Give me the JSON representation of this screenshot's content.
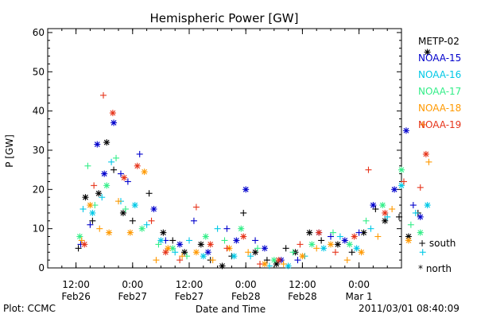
{
  "chart_data": {
    "type": "scatter",
    "title": "Hemispheric Power [GW]",
    "ylabel": "P [GW]",
    "xlabel": "Date and Time",
    "ylim": [
      0,
      61
    ],
    "yticks": [
      0,
      10,
      20,
      30,
      40,
      50,
      60
    ],
    "xlim": [
      "2011-02-26 06:00",
      "2011-03-01 09:00"
    ],
    "xticks": [
      {
        "time": "2011-02-26 12:00",
        "line1": "12:00",
        "line2": "Feb26"
      },
      {
        "time": "2011-02-27 00:00",
        "line1": "0:00",
        "line2": "Feb27"
      },
      {
        "time": "2011-02-27 12:00",
        "line1": "12:00",
        "line2": "Feb27"
      },
      {
        "time": "2011-02-28 00:00",
        "line1": "0:00",
        "line2": "Feb28"
      },
      {
        "time": "2011-02-28 12:00",
        "line1": "12:00",
        "line2": "Feb28"
      },
      {
        "time": "2011-03-01 00:00",
        "line1": "0:00",
        "line2": "Mar 1"
      }
    ],
    "marker_legend": {
      "south": "+ south",
      "north": "* north"
    },
    "series": [
      {
        "name": "METP-02",
        "color": "#000000",
        "points": [
          {
            "t": 6.5,
            "y": 5,
            "h": "S"
          },
          {
            "t": 8.0,
            "y": 18,
            "h": "N"
          },
          {
            "t": 9.5,
            "y": 12,
            "h": "S"
          },
          {
            "t": 10.8,
            "y": 19,
            "h": "N"
          },
          {
            "t": 12.5,
            "y": 32,
            "h": "N"
          },
          {
            "t": 14.0,
            "y": 25,
            "h": "S"
          },
          {
            "t": 16.0,
            "y": 14,
            "h": "N"
          },
          {
            "t": 18.0,
            "y": 12,
            "h": "S"
          },
          {
            "t": 21.5,
            "y": 19,
            "h": "S"
          },
          {
            "t": 24.5,
            "y": 9,
            "h": "N"
          },
          {
            "t": 26.5,
            "y": 7,
            "h": "S"
          },
          {
            "t": 29.0,
            "y": 4,
            "h": "N"
          },
          {
            "t": 32.5,
            "y": 6,
            "h": "N"
          },
          {
            "t": 34.5,
            "y": 2,
            "h": "S"
          },
          {
            "t": 37.0,
            "y": 0.5,
            "h": "N"
          },
          {
            "t": 39.0,
            "y": 3,
            "h": "S"
          },
          {
            "t": 41.5,
            "y": 14,
            "h": "S"
          },
          {
            "t": 44.0,
            "y": 4,
            "h": "N"
          },
          {
            "t": 46.5,
            "y": 2,
            "h": "S"
          },
          {
            "t": 48.5,
            "y": 1,
            "h": "N"
          },
          {
            "t": 50.5,
            "y": 5,
            "h": "S"
          },
          {
            "t": 52.5,
            "y": 4,
            "h": "N"
          },
          {
            "t": 55.5,
            "y": 9,
            "h": "N"
          },
          {
            "t": 58.0,
            "y": 7,
            "h": "S"
          },
          {
            "t": 61.5,
            "y": 6,
            "h": "N"
          },
          {
            "t": 64.5,
            "y": 4,
            "h": "S"
          },
          {
            "t": 67.0,
            "y": 9,
            "h": "N"
          },
          {
            "t": 69.5,
            "y": 15,
            "h": "S"
          },
          {
            "t": 71.5,
            "y": 12,
            "h": "N"
          },
          {
            "t": 74.5,
            "y": 13,
            "h": "S"
          },
          {
            "t": 76.5,
            "y": 8,
            "h": "N"
          },
          {
            "t": 78.5,
            "y": 14,
            "h": "S"
          },
          {
            "t": 80.5,
            "y": 55,
            "h": "N"
          }
        ]
      },
      {
        "name": "NOAA-15",
        "color": "#0000cc",
        "points": [
          {
            "t": 7.0,
            "y": 6,
            "h": "S"
          },
          {
            "t": 9.0,
            "y": 11,
            "h": "S"
          },
          {
            "t": 10.5,
            "y": 31.5,
            "h": "N"
          },
          {
            "t": 12.0,
            "y": 24,
            "h": "N"
          },
          {
            "t": 14.0,
            "y": 37,
            "h": "N"
          },
          {
            "t": 15.5,
            "y": 24,
            "h": "S"
          },
          {
            "t": 17.0,
            "y": 22,
            "h": "S"
          },
          {
            "t": 19.5,
            "y": 29,
            "h": "S"
          },
          {
            "t": 22.5,
            "y": 15,
            "h": "N"
          },
          {
            "t": 25.0,
            "y": 7,
            "h": "S"
          },
          {
            "t": 28.0,
            "y": 6,
            "h": "N"
          },
          {
            "t": 31.0,
            "y": 12,
            "h": "S"
          },
          {
            "t": 34.0,
            "y": 4,
            "h": "N"
          },
          {
            "t": 38.0,
            "y": 10,
            "h": "S"
          },
          {
            "t": 40.0,
            "y": 7,
            "h": "N"
          },
          {
            "t": 42.0,
            "y": 20,
            "h": "N"
          },
          {
            "t": 44.0,
            "y": 7,
            "h": "S"
          },
          {
            "t": 46.0,
            "y": 5,
            "h": "N"
          },
          {
            "t": 49.5,
            "y": 2,
            "h": "N"
          },
          {
            "t": 53.0,
            "y": 2,
            "h": "S"
          },
          {
            "t": 57.5,
            "y": 9,
            "h": "N"
          },
          {
            "t": 60.0,
            "y": 8,
            "h": "S"
          },
          {
            "t": 63.0,
            "y": 7,
            "h": "N"
          },
          {
            "t": 66.0,
            "y": 9,
            "h": "S"
          },
          {
            "t": 69.0,
            "y": 16,
            "h": "N"
          },
          {
            "t": 73.5,
            "y": 20,
            "h": "N"
          },
          {
            "t": 76.0,
            "y": 35,
            "h": "N"
          },
          {
            "t": 77.5,
            "y": 16,
            "h": "S"
          },
          {
            "t": 79.0,
            "y": 13,
            "h": "N"
          }
        ]
      },
      {
        "name": "NOAA-16",
        "color": "#00c8e6",
        "points": [
          {
            "t": 7.5,
            "y": 15,
            "h": "S"
          },
          {
            "t": 9.5,
            "y": 14,
            "h": "N"
          },
          {
            "t": 11.5,
            "y": 18,
            "h": "S"
          },
          {
            "t": 13.5,
            "y": 27,
            "h": "S"
          },
          {
            "t": 15.5,
            "y": 17,
            "h": "S"
          },
          {
            "t": 18.5,
            "y": 16,
            "h": "N"
          },
          {
            "t": 21.0,
            "y": 11,
            "h": "S"
          },
          {
            "t": 24.0,
            "y": 7,
            "h": "N"
          },
          {
            "t": 27.0,
            "y": 4,
            "h": "S"
          },
          {
            "t": 30.0,
            "y": 7,
            "h": "S"
          },
          {
            "t": 33.0,
            "y": 3,
            "h": "N"
          },
          {
            "t": 36.0,
            "y": 10,
            "h": "S"
          },
          {
            "t": 39.5,
            "y": 3,
            "h": "N"
          },
          {
            "t": 43.0,
            "y": 3,
            "h": "S"
          },
          {
            "t": 47.0,
            "y": 0.5,
            "h": "S"
          },
          {
            "t": 51.0,
            "y": 0.5,
            "h": "N"
          },
          {
            "t": 54.5,
            "y": 3,
            "h": "S"
          },
          {
            "t": 58.5,
            "y": 5,
            "h": "N"
          },
          {
            "t": 62.0,
            "y": 8,
            "h": "S"
          },
          {
            "t": 65.5,
            "y": 5,
            "h": "N"
          },
          {
            "t": 68.5,
            "y": 10,
            "h": "S"
          },
          {
            "t": 72.0,
            "y": 13,
            "h": "S"
          },
          {
            "t": 75.0,
            "y": 21,
            "h": "N"
          },
          {
            "t": 78.0,
            "y": 14,
            "h": "S"
          },
          {
            "t": 79.5,
            "y": 4,
            "h": "S"
          },
          {
            "t": 80.5,
            "y": 16,
            "h": "N"
          }
        ]
      },
      {
        "name": "NOAA-17",
        "color": "#33ee88",
        "points": [
          {
            "t": 6.8,
            "y": 8,
            "h": "N"
          },
          {
            "t": 8.5,
            "y": 26,
            "h": "S"
          },
          {
            "t": 10.0,
            "y": 16,
            "h": "S"
          },
          {
            "t": 12.5,
            "y": 21,
            "h": "N"
          },
          {
            "t": 14.5,
            "y": 28,
            "h": "S"
          },
          {
            "t": 16.5,
            "y": 15,
            "h": "S"
          },
          {
            "t": 20.0,
            "y": 10,
            "h": "N"
          },
          {
            "t": 23.5,
            "y": 6,
            "h": "S"
          },
          {
            "t": 26.5,
            "y": 5,
            "h": "N"
          },
          {
            "t": 29.5,
            "y": 3,
            "h": "S"
          },
          {
            "t": 33.5,
            "y": 8,
            "h": "N"
          },
          {
            "t": 37.5,
            "y": 7,
            "h": "S"
          },
          {
            "t": 41.0,
            "y": 10,
            "h": "N"
          },
          {
            "t": 44.5,
            "y": 5,
            "h": "S"
          },
          {
            "t": 48.0,
            "y": 2,
            "h": "N"
          },
          {
            "t": 52.0,
            "y": 4,
            "h": "S"
          },
          {
            "t": 56.0,
            "y": 6,
            "h": "N"
          },
          {
            "t": 60.5,
            "y": 9,
            "h": "S"
          },
          {
            "t": 64.0,
            "y": 6,
            "h": "N"
          },
          {
            "t": 67.5,
            "y": 12,
            "h": "S"
          },
          {
            "t": 71.0,
            "y": 16,
            "h": "N"
          },
          {
            "t": 75.0,
            "y": 25,
            "h": "N"
          },
          {
            "t": 77.0,
            "y": 11,
            "h": "S"
          },
          {
            "t": 79.0,
            "y": 9,
            "h": "N"
          }
        ]
      },
      {
        "name": "NOAA-18",
        "color": "#ff9900",
        "points": [
          {
            "t": 7.2,
            "y": 7,
            "h": "S"
          },
          {
            "t": 9.0,
            "y": 16,
            "h": "N"
          },
          {
            "t": 11.0,
            "y": 10,
            "h": "S"
          },
          {
            "t": 13.0,
            "y": 9,
            "h": "N"
          },
          {
            "t": 15.0,
            "y": 17,
            "h": "S"
          },
          {
            "t": 17.5,
            "y": 9,
            "h": "N"
          },
          {
            "t": 20.5,
            "y": 24.5,
            "h": "N"
          },
          {
            "t": 23.0,
            "y": 2,
            "h": "S"
          },
          {
            "t": 25.5,
            "y": 5,
            "h": "N"
          },
          {
            "t": 28.5,
            "y": 3,
            "h": "S"
          },
          {
            "t": 31.5,
            "y": 4,
            "h": "N"
          },
          {
            "t": 35.0,
            "y": 2,
            "h": "S"
          },
          {
            "t": 38.5,
            "y": 5,
            "h": "N"
          },
          {
            "t": 42.5,
            "y": 4,
            "h": "S"
          },
          {
            "t": 46.0,
            "y": 1,
            "h": "N"
          },
          {
            "t": 50.0,
            "y": 1,
            "h": "S"
          },
          {
            "t": 54.0,
            "y": 3,
            "h": "N"
          },
          {
            "t": 57.0,
            "y": 5,
            "h": "S"
          },
          {
            "t": 60.0,
            "y": 6,
            "h": "N"
          },
          {
            "t": 63.5,
            "y": 2,
            "h": "S"
          },
          {
            "t": 66.5,
            "y": 4,
            "h": "N"
          },
          {
            "t": 70.0,
            "y": 8,
            "h": "S"
          },
          {
            "t": 73.0,
            "y": 15,
            "h": "S"
          },
          {
            "t": 76.5,
            "y": 7,
            "h": "N"
          },
          {
            "t": 79.5,
            "y": 36.5,
            "h": "S"
          },
          {
            "t": 80.8,
            "y": 27,
            "h": "S"
          }
        ]
      },
      {
        "name": "NOAA-19",
        "color": "#e63319",
        "points": [
          {
            "t": 7.8,
            "y": 6,
            "h": "N"
          },
          {
            "t": 9.8,
            "y": 21,
            "h": "S"
          },
          {
            "t": 11.8,
            "y": 44,
            "h": "S"
          },
          {
            "t": 13.8,
            "y": 39.5,
            "h": "N"
          },
          {
            "t": 16.2,
            "y": 23,
            "h": "N"
          },
          {
            "t": 19.0,
            "y": 26,
            "h": "N"
          },
          {
            "t": 22.0,
            "y": 12,
            "h": "S"
          },
          {
            "t": 25.0,
            "y": 4,
            "h": "N"
          },
          {
            "t": 28.0,
            "y": 2,
            "h": "S"
          },
          {
            "t": 31.5,
            "y": 15.5,
            "h": "S"
          },
          {
            "t": 34.5,
            "y": 6,
            "h": "N"
          },
          {
            "t": 38.0,
            "y": 5,
            "h": "S"
          },
          {
            "t": 41.5,
            "y": 8,
            "h": "N"
          },
          {
            "t": 45.0,
            "y": 1,
            "h": "S"
          },
          {
            "t": 49.0,
            "y": 2,
            "h": "N"
          },
          {
            "t": 53.5,
            "y": 6,
            "h": "S"
          },
          {
            "t": 57.5,
            "y": 9,
            "h": "N"
          },
          {
            "t": 61.0,
            "y": 4,
            "h": "S"
          },
          {
            "t": 65.0,
            "y": 8,
            "h": "N"
          },
          {
            "t": 68.0,
            "y": 25,
            "h": "S"
          },
          {
            "t": 71.5,
            "y": 14,
            "h": "N"
          },
          {
            "t": 75.5,
            "y": 22,
            "h": "S"
          },
          {
            "t": 79.0,
            "y": 20.5,
            "h": "S"
          },
          {
            "t": 80.2,
            "y": 29,
            "h": "N"
          }
        ]
      }
    ]
  },
  "footer": {
    "plot_label": "Plot: CCMC",
    "timestamp": "2011/03/01 08:40:09"
  }
}
